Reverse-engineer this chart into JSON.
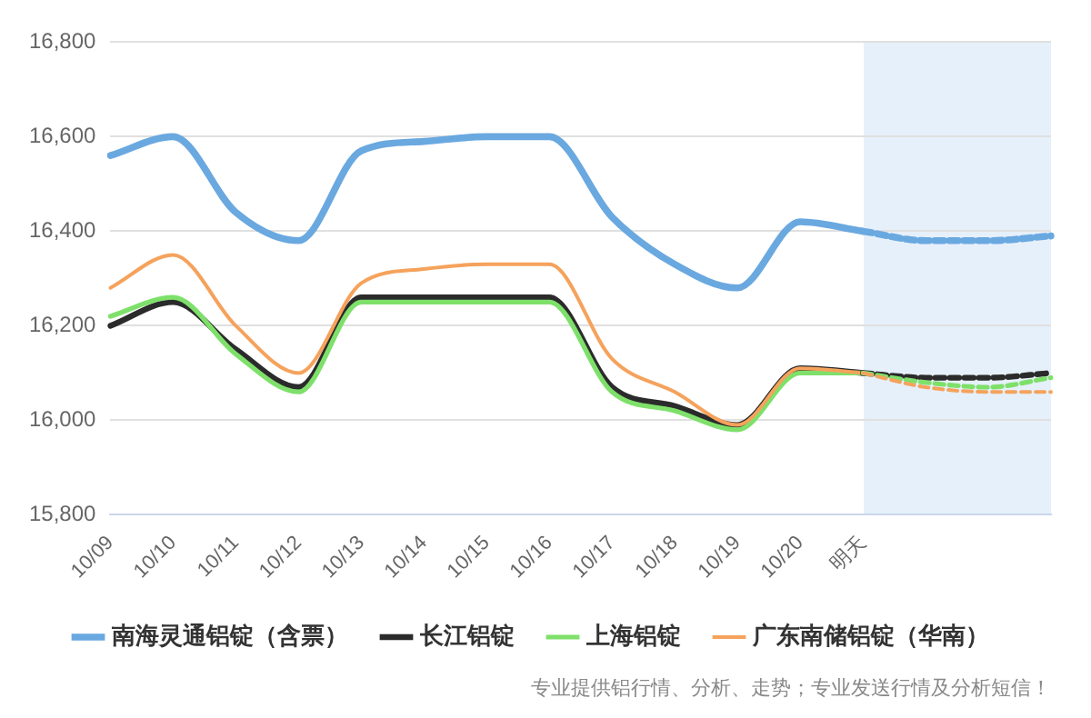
{
  "chart_data": {
    "type": "line",
    "categories": [
      "10/09",
      "10/10",
      "10/11",
      "10/12",
      "10/13",
      "10/14",
      "10/15",
      "10/16",
      "10/17",
      "10/18",
      "10/19",
      "10/20",
      "明天",
      null,
      null,
      null
    ],
    "series": [
      {
        "name": "南海灵通铝锭（含票）",
        "color": "#6aa8e0",
        "values": [
          16560,
          16600,
          16440,
          16380,
          16570,
          16590,
          16600,
          16600,
          16430,
          16330,
          16280,
          16420,
          16400,
          null,
          null,
          null
        ]
      },
      {
        "name": "长江铝锭",
        "color": "#2b2b2b",
        "values": [
          16200,
          16250,
          16150,
          16070,
          16260,
          16260,
          16260,
          16260,
          16070,
          16030,
          15990,
          16110,
          16100,
          null,
          null,
          null
        ]
      },
      {
        "name": "上海铝锭",
        "color": "#7ee06a",
        "values": [
          16220,
          16260,
          16140,
          16060,
          16250,
          16250,
          16250,
          16250,
          16060,
          16020,
          15980,
          16100,
          16100,
          null,
          null,
          null
        ]
      },
      {
        "name": "广东南储铝锭（华南）",
        "color": "#f5a25c",
        "values": [
          16280,
          16350,
          16200,
          16100,
          16290,
          16320,
          16330,
          16330,
          16130,
          16060,
          15990,
          16110,
          16100,
          null,
          null,
          null
        ]
      },
      {
        "color": "#6aa8e0",
        "line_style": "dashed",
        "values": [
          null,
          null,
          null,
          null,
          null,
          null,
          null,
          null,
          null,
          null,
          null,
          null,
          16400,
          16380,
          16380,
          16390
        ]
      },
      {
        "color": "#2b2b2b",
        "line_style": "dashed",
        "values": [
          null,
          null,
          null,
          null,
          null,
          null,
          null,
          null,
          null,
          null,
          null,
          null,
          16100,
          16090,
          16090,
          16100
        ]
      },
      {
        "color": "#7ee06a",
        "line_style": "dashed",
        "values": [
          null,
          null,
          null,
          null,
          null,
          null,
          null,
          null,
          null,
          null,
          null,
          null,
          16100,
          16080,
          16070,
          16090
        ]
      },
      {
        "color": "#f5a25c",
        "line_style": "dashed",
        "values": [
          null,
          null,
          null,
          null,
          null,
          null,
          null,
          null,
          null,
          null,
          null,
          null,
          16100,
          16070,
          16060,
          16060
        ]
      }
    ],
    "ylim": [
      15800,
      16800
    ],
    "yticks": [
      {
        "value": 15800,
        "label": "15,800"
      },
      {
        "value": 16000,
        "label": "16,000"
      },
      {
        "value": 16200,
        "label": "16,200"
      },
      {
        "value": 16400,
        "label": "16,400"
      },
      {
        "value": 16600,
        "label": "16,600"
      },
      {
        "value": 16800,
        "label": "16,800"
      }
    ],
    "grid": "y",
    "legend": "bottom",
    "marker": "none",
    "annotations": [
      "专业提供铝行情、分析、走势；专业发送行情及分析短信！"
    ]
  }
}
